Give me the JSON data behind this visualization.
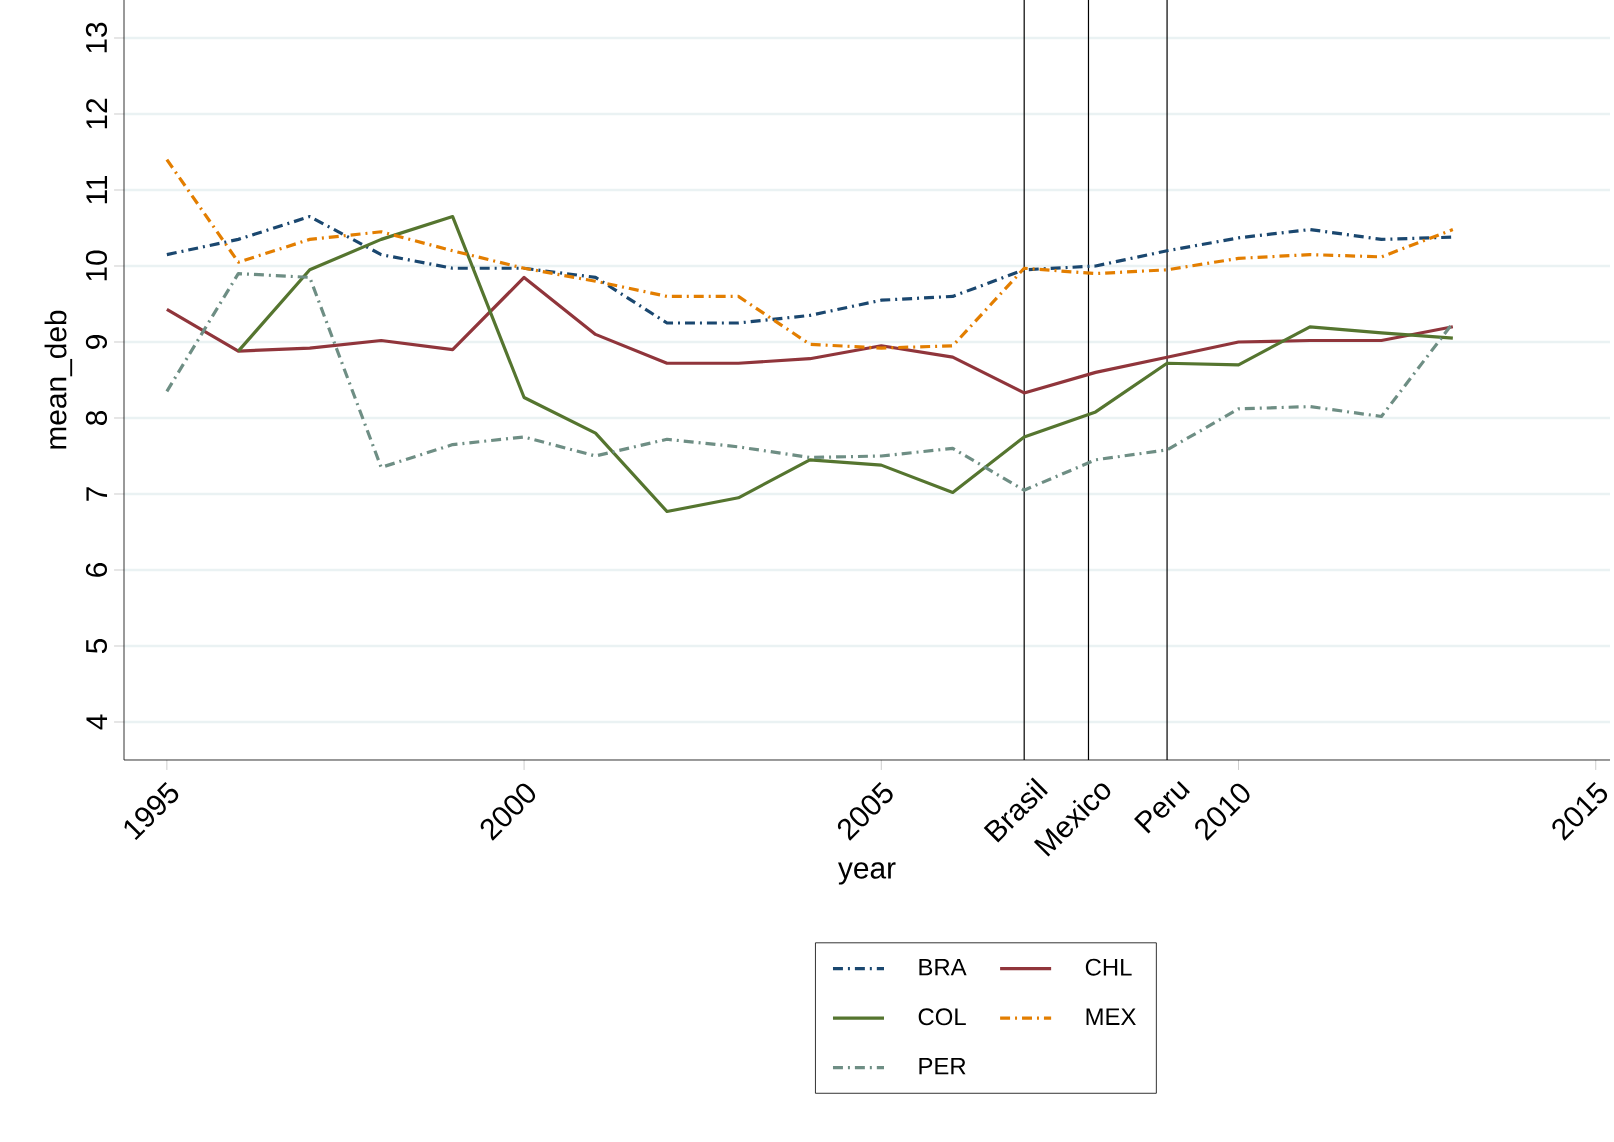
{
  "chart_data": {
    "type": "line",
    "xlabel": "year",
    "ylabel": "mean_deb",
    "x": [
      1995,
      1996,
      1997,
      1998,
      1999,
      2000,
      2001,
      2002,
      2003,
      2004,
      2005,
      2006,
      2007,
      2008,
      2009,
      2010,
      2011,
      2012,
      2013
    ],
    "series": [
      {
        "name": "BRA",
        "color": "#1a476f",
        "line_style": "dashed",
        "values": [
          10.15,
          10.35,
          10.65,
          10.15,
          9.97,
          9.97,
          9.85,
          9.25,
          9.25,
          9.35,
          9.55,
          9.6,
          9.95,
          10.0,
          10.2,
          10.37,
          10.48,
          10.35,
          10.38
        ]
      },
      {
        "name": "CHL",
        "color": "#90353b",
        "line_style": "solid",
        "values": [
          9.43,
          8.88,
          8.92,
          9.02,
          8.9,
          9.85,
          9.1,
          8.72,
          8.72,
          8.78,
          8.95,
          8.8,
          8.33,
          8.6,
          8.8,
          9.0,
          9.02,
          9.02,
          9.2
        ]
      },
      {
        "name": "COL",
        "color": "#55752f",
        "line_style": "solid",
        "values": [
          null,
          8.88,
          9.95,
          10.35,
          10.65,
          8.27,
          7.8,
          6.77,
          6.95,
          7.45,
          7.38,
          7.02,
          7.75,
          8.08,
          8.72,
          8.7,
          9.2,
          9.12,
          9.05
        ]
      },
      {
        "name": "MEX",
        "color": "#e37e00",
        "line_style": "dashed",
        "values": [
          11.4,
          10.05,
          10.35,
          10.45,
          10.2,
          9.97,
          9.8,
          9.6,
          9.6,
          8.97,
          8.92,
          8.95,
          9.97,
          9.9,
          9.95,
          10.1,
          10.15,
          10.12,
          10.48
        ]
      },
      {
        "name": "PER",
        "color": "#6e8e84",
        "line_style": "dashed",
        "values": [
          8.35,
          9.9,
          9.85,
          7.35,
          7.65,
          7.75,
          7.5,
          7.72,
          7.62,
          7.48,
          7.5,
          7.6,
          7.05,
          7.45,
          7.58,
          8.12,
          8.15,
          8.02,
          9.25
        ]
      }
    ],
    "xlim": [
      1994.4,
      2015.2
    ],
    "xticks": [
      1995,
      2000,
      2005,
      2010,
      2015
    ],
    "ylim": [
      3.5,
      13.5
    ],
    "yticks": [
      4,
      5,
      6,
      7,
      8,
      9,
      10,
      11,
      12,
      13
    ],
    "ref_lines": [
      {
        "axis": "x",
        "value": 2007,
        "label": "Brasil",
        "color": "#000000"
      },
      {
        "axis": "x",
        "value": 2007.9,
        "label": "Mexico",
        "color": "#000000"
      },
      {
        "axis": "x",
        "value": 2009,
        "label": "Peru",
        "color": "#000000"
      }
    ],
    "grid": "y",
    "legend": "bottom",
    "marker": "none"
  }
}
